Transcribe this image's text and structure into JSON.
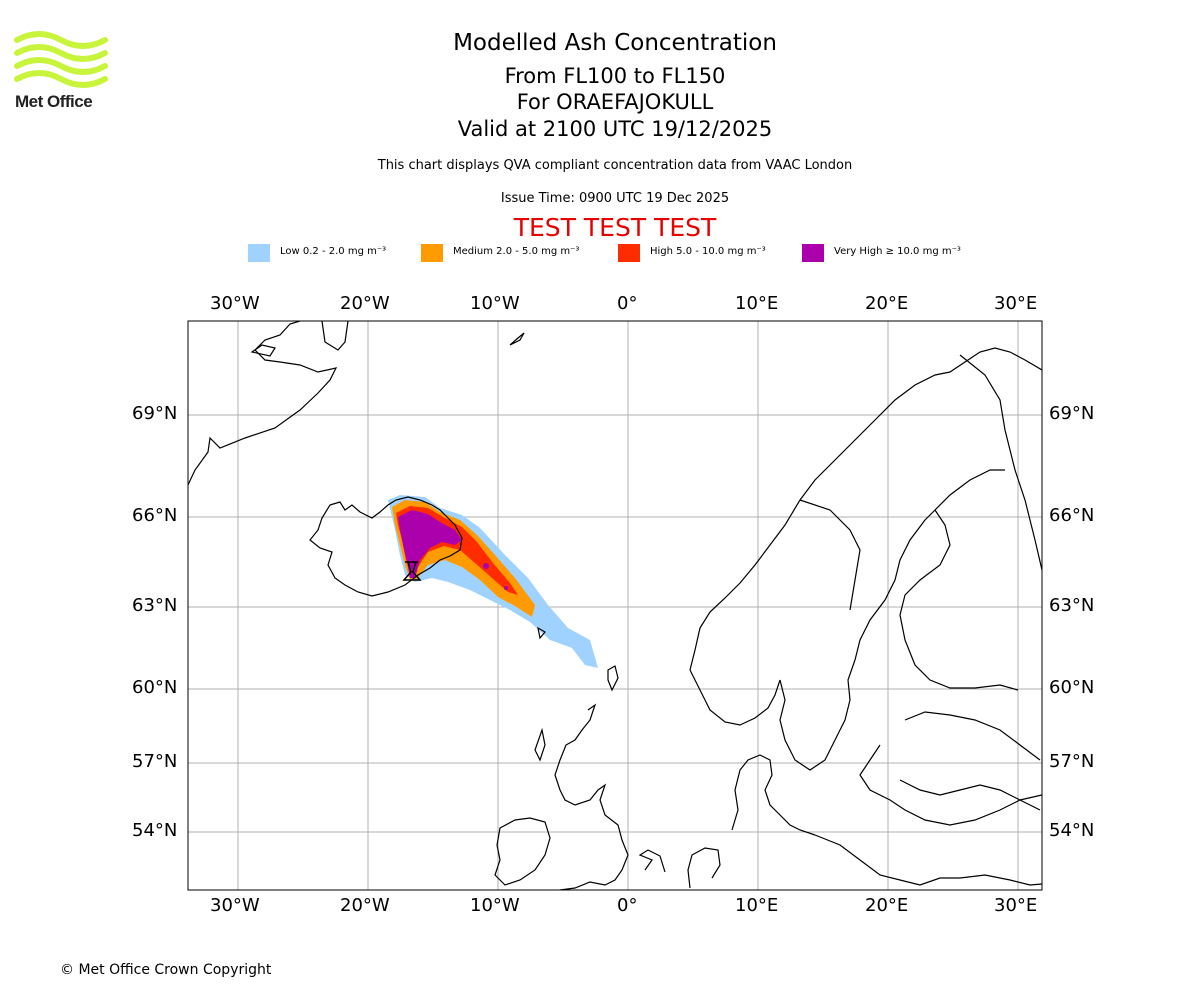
{
  "header": {
    "logo_text": "Met Office",
    "title": "Modelled Ash Concentration",
    "levels": "From FL100 to FL150",
    "volcano": "For ORAEFAJOKULL",
    "valid": "Valid at 2100 UTC 19/12/2025",
    "note": "This chart displays QVA compliant concentration data from VAAC London",
    "issue": "Issue Time: 0900 UTC 19 Dec 2025",
    "test_banner": "TEST TEST TEST"
  },
  "legend": [
    {
      "label": "Low 0.2 - 2.0 mg m⁻³",
      "color": "#a0d2ff"
    },
    {
      "label": "Medium 2.0 - 5.0 mg m⁻³",
      "color": "#ff9a00"
    },
    {
      "label": "High 5.0 - 10.0 mg m⁻³",
      "color": "#ff2c00"
    },
    {
      "label": "Very High ≥ 10.0 mg m⁻³",
      "color": "#ad00ad"
    }
  ],
  "axes": {
    "lon_labels": [
      "30°W",
      "20°W",
      "10°W",
      "0°",
      "10°E",
      "20°E",
      "30°E"
    ],
    "lat_labels": [
      "69°N",
      "66°N",
      "63°N",
      "60°N",
      "57°N",
      "54°N"
    ]
  },
  "colors": {
    "grid": "#b0b0b0",
    "coast": "#000000",
    "test": "#e60000",
    "logo": "#c8f53c"
  },
  "footer": {
    "copyright": "© Met Office Crown Copyright"
  }
}
